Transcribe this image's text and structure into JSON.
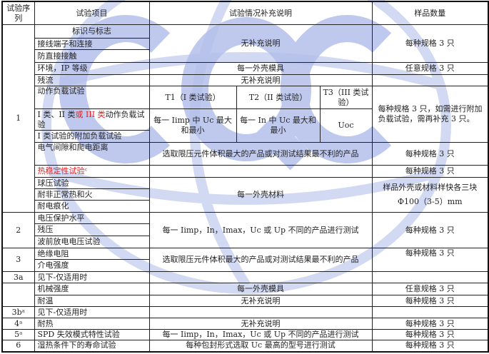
{
  "watermark": {
    "text": "CQC",
    "color": "#aebbe8"
  },
  "header": {
    "seq": "试验序列",
    "item": "试验项目",
    "note": "试验情况补充说明",
    "qty": "样品数量"
  },
  "rows": {
    "r1": {
      "seq": "1",
      "item": "标识与标志",
      "note": "无补充说明",
      "qty": "每种规格 3 只"
    },
    "r2": {
      "item": "接线端子和连接"
    },
    "r3": {
      "item": "防直接接触"
    },
    "r4": {
      "item": "环境，IP 等级",
      "note": "每一外壳模具",
      "qty": "任意规格 3 只"
    },
    "r5": {
      "item": "残流",
      "note": "无补充说明"
    },
    "r6": {
      "item": "动作负载试验",
      "t1": "T1（I 类试验）",
      "t2": "T2（II 类试验）",
      "t3": "T3（III 类试验）",
      "qty": "每种规格 3 只，如需进行附加负载试验，需再补充 3 只。"
    },
    "r7": {
      "item_a": "I 类、II 类",
      "item_red": "或 III 类",
      "item_b": "动作负载试验",
      "t1": "每一 Iimp 中 Uc 最大和最小",
      "t2": "每一 In 中 Uc 最大和最小",
      "t3": "Uoc"
    },
    "r8": {
      "item": "I 类试验的附加负载试验"
    },
    "r9": {
      "item": "电气间隙和爬电距离",
      "note": "选取限压元件体积最大的产品或对测试结果最不利的产品",
      "qty": "每种规格 3 只"
    },
    "r10": {
      "item": "热稳定性试验ᶜ",
      "qty": "每种规格 3 只"
    },
    "r11": {
      "item": "球压试验",
      "note": "每一外壳材料",
      "qty_a": "样品外壳或材料样快各三块",
      "qty_b": "Φ100（3-5）mm"
    },
    "r12": {
      "item": "耐非正常热和火"
    },
    "r13": {
      "item": "耐电痕化"
    },
    "r14": {
      "seq": "2",
      "item": "电压保护水平",
      "note": "每一 Iimp，In，Imax，Uc 或 Up 不同的产品进行测试",
      "qty": "每种规格 3 只"
    },
    "r15": {
      "item": "残压"
    },
    "r16": {
      "item": "波前放电电压试验"
    },
    "r17": {
      "seq": "3",
      "item": "绝缘电阻",
      "note": "选取限压元件体积最大的产品或对测试结果最不利的产品",
      "qty": "每种规格 3 只"
    },
    "r18": {
      "item": "介电强度"
    },
    "r19": {
      "seq": "3a",
      "item": "见下-仅适用时"
    },
    "r20": {
      "item": "机械强度",
      "note": "每一外壳模具",
      "qty": "任意规格 3 只"
    },
    "r21": {
      "item": "耐温",
      "note": "无补充说明",
      "qty": "每种规格 3 只"
    },
    "r22": {
      "seq": "3bᵃ",
      "item": "见下-仅适用时"
    },
    "r23": {
      "seq": "4ᵃ",
      "item": "耐热",
      "note": "无补充说明",
      "qty": "每种规格 3 只"
    },
    "r24": {
      "seq": "5ᵃ",
      "item": "SPD 失效模式特性试验",
      "note": "每一 Iimp，In，Imax，Uc 或 Up 不同的产品进行测试",
      "qty": "每种规格 3 只"
    },
    "r25": {
      "seq": "6",
      "item": "湿热条件下的寿命试验",
      "note": "每种包封形式选取 Uc 最高的型号进行测试",
      "qty": "每种规格 3 只"
    }
  }
}
